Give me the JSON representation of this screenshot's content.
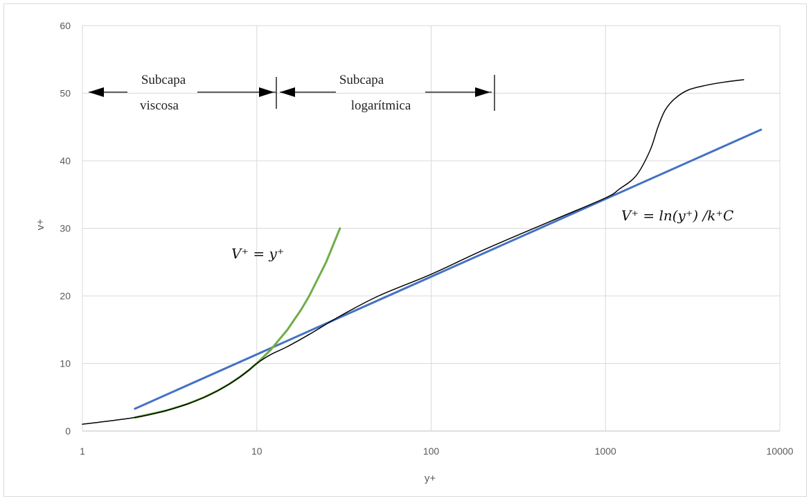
{
  "chart_data": {
    "type": "line",
    "xscale": "log",
    "xlim": [
      1,
      10000
    ],
    "ylim": [
      0,
      60
    ],
    "xticks": [
      "1",
      "10",
      "100",
      "1000",
      "10000"
    ],
    "yticks": [
      "0",
      "10",
      "20",
      "30",
      "40",
      "50",
      "60"
    ],
    "xlabel": "y+",
    "ylabel": "v+",
    "grid": true,
    "series": [
      {
        "color": "#000000",
        "x": [
          1,
          2,
          3,
          4,
          5,
          6,
          7,
          8,
          9,
          10,
          12,
          15,
          20,
          30,
          50,
          100,
          200,
          500,
          1000,
          1200,
          1500,
          1800,
          2000,
          2200,
          2500,
          3000,
          4000,
          5000,
          6200
        ],
        "y": [
          1.0,
          2.0,
          3.0,
          4.0,
          5.0,
          6.0,
          7.0,
          8.0,
          9.0,
          10.0,
          11.3,
          12.5,
          14.3,
          17.0,
          20.0,
          23.2,
          26.8,
          31.2,
          34.5,
          35.8,
          37.8,
          41.5,
          45.0,
          47.5,
          49.2,
          50.5,
          51.3,
          51.7,
          52.0
        ]
      },
      {
        "color": "#70ad47",
        "x": [
          2,
          3,
          4,
          5,
          6,
          7,
          8,
          9,
          10,
          12,
          15,
          18,
          20,
          25,
          30
        ],
        "y": [
          2,
          3,
          4,
          5,
          6,
          7,
          8,
          9,
          10,
          12,
          15,
          18,
          20,
          25,
          30
        ]
      },
      {
        "color": "#4472c4",
        "x": [
          2,
          7800
        ],
        "y": [
          3.3,
          44.6
        ]
      }
    ],
    "annotations": {
      "region_viscous": [
        "Subcapa",
        "viscosa"
      ],
      "region_log": [
        "Subcapa",
        "logarítmica"
      ],
      "eq_linear": "V⁺ = y⁺",
      "eq_log": "V⁺ = ln(y⁺) /k⁺C"
    }
  }
}
